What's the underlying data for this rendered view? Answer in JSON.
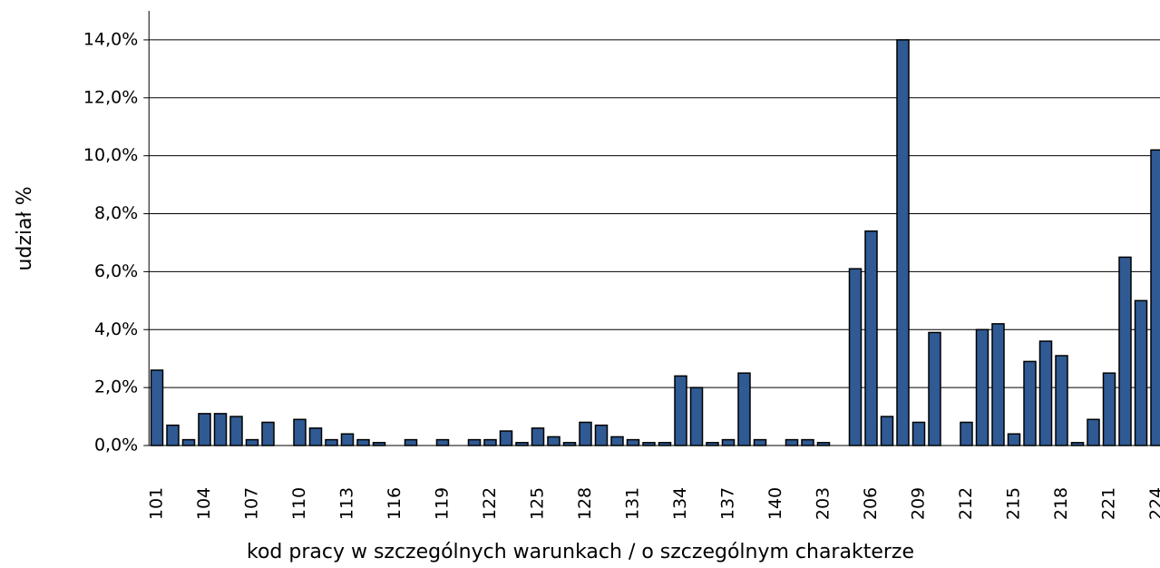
{
  "chart_data": {
    "type": "bar",
    "y_label": "udział %",
    "x_label": "kod pracy w szczególnych warunkach / o szczególnym charakterze",
    "categories": [
      "101",
      null,
      null,
      "104",
      null,
      null,
      "107",
      null,
      null,
      "110",
      null,
      null,
      "113",
      null,
      null,
      "116",
      null,
      null,
      "119",
      null,
      null,
      "122",
      null,
      null,
      "125",
      null,
      null,
      "128",
      null,
      null,
      "131",
      null,
      null,
      "134",
      null,
      null,
      "137",
      null,
      null,
      "140",
      null,
      null,
      "203",
      null,
      null,
      "206",
      null,
      null,
      "209",
      null,
      null,
      "212",
      null,
      null,
      "215",
      null,
      null,
      "218",
      null,
      null,
      "221",
      null,
      null,
      "224"
    ],
    "values": [
      2.6,
      0.7,
      0.2,
      1.1,
      1.1,
      1.0,
      0.2,
      0.8,
      0,
      0.9,
      0.6,
      0.2,
      0.4,
      0.2,
      0.1,
      0,
      0.2,
      0,
      0.2,
      0,
      0.2,
      0.2,
      0.5,
      0.1,
      0.6,
      0.3,
      0.1,
      0.8,
      0.7,
      0.3,
      0.2,
      0.1,
      0.1,
      2.4,
      2.0,
      0.1,
      0.2,
      2.5,
      0.2,
      0,
      0.2,
      0.2,
      0.1,
      0,
      6.1,
      7.4,
      1.0,
      14.0,
      0.8,
      3.9,
      0,
      0.8,
      4.0,
      4.2,
      0.4,
      2.9,
      3.6,
      3.1,
      0.1,
      0.9,
      2.5,
      6.5,
      5.0,
      10.2
    ],
    "color": "#2f5a93",
    "ylim": [
      0,
      15
    ],
    "yticks": [
      {
        "value": 0,
        "label": "0,0%"
      },
      {
        "value": 2,
        "label": "2,0%"
      },
      {
        "value": 4,
        "label": "4,0%"
      },
      {
        "value": 6,
        "label": "6,0%"
      },
      {
        "value": 8,
        "label": "8,0%"
      },
      {
        "value": 10,
        "label": "10,0%"
      },
      {
        "value": 12,
        "label": "12,0%"
      },
      {
        "value": 14,
        "label": "14,0%"
      }
    ],
    "grid": true
  }
}
